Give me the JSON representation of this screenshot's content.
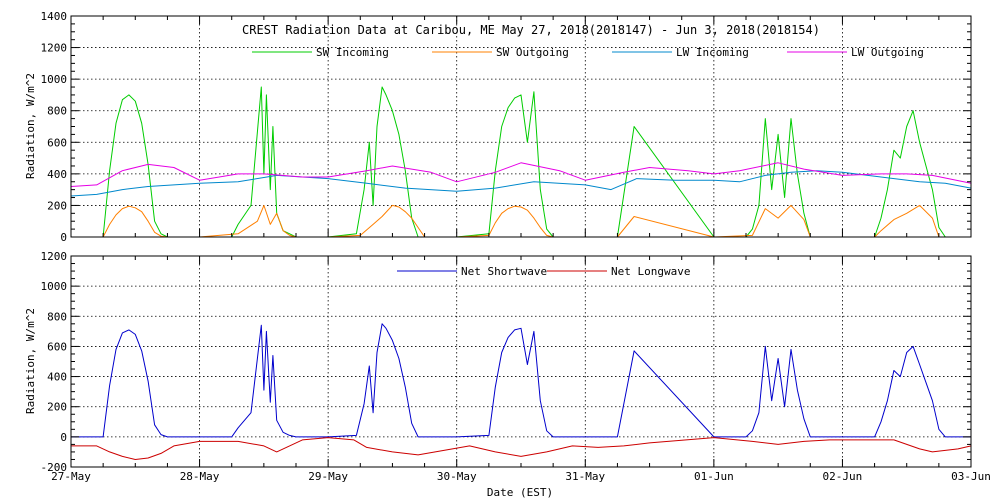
{
  "chart_data": [
    {
      "type": "line",
      "title": "CREST Radiation Data at Caribou, ME   May 27, 2018(2018147) - Jun  3, 2018(2018154)",
      "xlabel": "",
      "ylabel": "Radiation, W/m^2",
      "xlim": [
        0,
        7
      ],
      "ylim": [
        0,
        1400
      ],
      "yticks": [
        0,
        200,
        400,
        600,
        800,
        1000,
        1200,
        1400
      ],
      "xtick_labels": [
        "27-May",
        "28-May",
        "29-May",
        "30-May",
        "31-May",
        "01-Jun",
        "02-Jun",
        "03-Jun"
      ],
      "grid": true,
      "legend": "top",
      "series": [
        {
          "name": "SW Incoming",
          "color": "#00cc00",
          "x": [
            0.0,
            0.25,
            0.3,
            0.35,
            0.4,
            0.45,
            0.5,
            0.55,
            0.6,
            0.65,
            0.7,
            0.75,
            0.8,
            1.0,
            1.25,
            1.3,
            1.4,
            1.48,
            1.5,
            1.52,
            1.55,
            1.57,
            1.6,
            1.65,
            1.7,
            1.75,
            1.8,
            2.0,
            2.22,
            2.28,
            2.32,
            2.35,
            2.38,
            2.42,
            2.45,
            2.5,
            2.55,
            2.6,
            2.65,
            2.7,
            2.75,
            2.8,
            3.0,
            3.25,
            3.3,
            3.35,
            3.4,
            3.45,
            3.5,
            3.55,
            3.6,
            3.65,
            3.7,
            3.75,
            3.8,
            4.0,
            4.25,
            4.38,
            5.0,
            5.25,
            5.3,
            5.35,
            5.4,
            5.45,
            5.5,
            5.55,
            5.6,
            5.65,
            5.7,
            5.75,
            5.8,
            6.0,
            6.25,
            6.3,
            6.35,
            6.4,
            6.45,
            6.5,
            6.55,
            6.6,
            6.65,
            6.7,
            6.75,
            6.8,
            7.0
          ],
          "y": [
            0,
            0,
            420,
            720,
            870,
            900,
            860,
            720,
            460,
            100,
            20,
            0,
            0,
            0,
            0,
            80,
            200,
            950,
            400,
            900,
            300,
            700,
            150,
            40,
            20,
            0,
            0,
            0,
            20,
            300,
            600,
            200,
            700,
            950,
            900,
            800,
            650,
            420,
            120,
            0,
            0,
            0,
            0,
            20,
            420,
            700,
            820,
            880,
            900,
            600,
            920,
            300,
            50,
            0,
            0,
            0,
            0,
            700,
            0,
            0,
            50,
            200,
            750,
            300,
            650,
            250,
            750,
            400,
            150,
            0,
            0,
            0,
            0,
            120,
            300,
            550,
            500,
            700,
            800,
            600,
            450,
            300,
            60,
            0,
            0
          ]
        },
        {
          "name": "SW Outgoing",
          "color": "#ff8000",
          "x": [
            0.0,
            0.25,
            0.3,
            0.35,
            0.4,
            0.45,
            0.5,
            0.55,
            0.6,
            0.65,
            0.7,
            0.75,
            1.0,
            1.3,
            1.45,
            1.5,
            1.55,
            1.6,
            1.65,
            1.7,
            1.75,
            2.0,
            2.25,
            2.35,
            2.42,
            2.5,
            2.55,
            2.6,
            2.65,
            2.7,
            2.75,
            3.0,
            3.25,
            3.3,
            3.35,
            3.4,
            3.45,
            3.5,
            3.55,
            3.6,
            3.65,
            3.7,
            3.75,
            4.0,
            4.25,
            4.38,
            5.0,
            5.3,
            5.4,
            5.5,
            5.6,
            5.7,
            5.75,
            6.0,
            6.25,
            6.3,
            6.4,
            6.5,
            6.6,
            6.7,
            6.75,
            7.0
          ],
          "y": [
            0,
            0,
            80,
            140,
            180,
            195,
            185,
            160,
            100,
            30,
            5,
            0,
            0,
            20,
            100,
            200,
            80,
            150,
            40,
            10,
            0,
            0,
            10,
            80,
            130,
            200,
            190,
            160,
            120,
            60,
            0,
            0,
            10,
            90,
            150,
            180,
            195,
            190,
            170,
            120,
            60,
            10,
            0,
            0,
            0,
            130,
            0,
            10,
            180,
            120,
            200,
            110,
            0,
            0,
            0,
            40,
            110,
            150,
            200,
            120,
            0,
            0
          ]
        },
        {
          "name": "LW Incoming",
          "color": "#0088cc",
          "x": [
            0.0,
            0.2,
            0.4,
            0.6,
            0.8,
            1.0,
            1.3,
            1.6,
            2.0,
            2.3,
            2.6,
            3.0,
            3.3,
            3.6,
            4.0,
            4.2,
            4.4,
            4.7,
            5.0,
            5.2,
            5.4,
            5.6,
            5.8,
            6.0,
            6.3,
            6.6,
            6.8,
            7.0
          ],
          "y": [
            260,
            270,
            300,
            320,
            330,
            340,
            350,
            390,
            370,
            340,
            310,
            290,
            310,
            350,
            330,
            300,
            370,
            360,
            360,
            350,
            390,
            410,
            420,
            410,
            380,
            350,
            340,
            310
          ]
        },
        {
          "name": "LW Outgoing",
          "color": "#e600e6",
          "x": [
            0.0,
            0.2,
            0.4,
            0.6,
            0.8,
            1.0,
            1.3,
            1.5,
            1.8,
            2.0,
            2.3,
            2.5,
            2.8,
            3.0,
            3.3,
            3.5,
            3.8,
            4.0,
            4.3,
            4.5,
            4.8,
            5.0,
            5.2,
            5.5,
            5.7,
            6.0,
            6.3,
            6.5,
            6.7,
            7.0
          ],
          "y": [
            320,
            330,
            420,
            460,
            440,
            360,
            400,
            400,
            380,
            380,
            420,
            450,
            410,
            350,
            410,
            470,
            420,
            360,
            410,
            440,
            420,
            400,
            420,
            470,
            430,
            390,
            400,
            400,
            390,
            340
          ]
        }
      ]
    },
    {
      "type": "line",
      "title": "",
      "xlabel": "Date (EST)",
      "ylabel": "Radiation, W/m^2",
      "xlim": [
        0,
        7
      ],
      "ylim": [
        -200,
        1200
      ],
      "yticks": [
        -200,
        0,
        200,
        400,
        600,
        800,
        1000,
        1200
      ],
      "xtick_labels": [
        "27-May",
        "28-May",
        "29-May",
        "30-May",
        "31-May",
        "01-Jun",
        "02-Jun",
        "03-Jun"
      ],
      "grid": true,
      "legend": "top",
      "series": [
        {
          "name": "Net Shortwave",
          "color": "#0000cc",
          "x": [
            0.0,
            0.25,
            0.3,
            0.35,
            0.4,
            0.45,
            0.5,
            0.55,
            0.6,
            0.65,
            0.7,
            0.75,
            0.8,
            1.0,
            1.25,
            1.3,
            1.4,
            1.48,
            1.5,
            1.52,
            1.55,
            1.57,
            1.6,
            1.65,
            1.7,
            1.75,
            1.8,
            2.0,
            2.22,
            2.28,
            2.32,
            2.35,
            2.38,
            2.42,
            2.45,
            2.5,
            2.55,
            2.6,
            2.65,
            2.7,
            2.75,
            2.8,
            3.0,
            3.25,
            3.3,
            3.35,
            3.4,
            3.45,
            3.5,
            3.55,
            3.6,
            3.65,
            3.7,
            3.75,
            3.8,
            4.0,
            4.25,
            4.38,
            5.0,
            5.25,
            5.3,
            5.35,
            5.4,
            5.45,
            5.5,
            5.55,
            5.6,
            5.65,
            5.7,
            5.75,
            5.8,
            6.0,
            6.25,
            6.3,
            6.35,
            6.4,
            6.45,
            6.5,
            6.55,
            6.6,
            6.65,
            6.7,
            6.75,
            6.8,
            7.0
          ],
          "y": [
            0,
            0,
            340,
            580,
            690,
            710,
            680,
            570,
            370,
            80,
            15,
            0,
            0,
            0,
            0,
            60,
            160,
            740,
            310,
            700,
            230,
            540,
            110,
            30,
            10,
            0,
            0,
            0,
            10,
            220,
            470,
            160,
            560,
            750,
            720,
            640,
            520,
            330,
            90,
            0,
            0,
            0,
            0,
            10,
            330,
            560,
            660,
            710,
            720,
            480,
            700,
            240,
            40,
            0,
            0,
            0,
            0,
            570,
            0,
            0,
            40,
            160,
            600,
            240,
            520,
            200,
            580,
            310,
            120,
            0,
            0,
            0,
            0,
            100,
            240,
            440,
            400,
            560,
            600,
            480,
            360,
            240,
            50,
            0,
            0
          ]
        },
        {
          "name": "Net Longwave",
          "color": "#cc0000",
          "x": [
            0.0,
            0.2,
            0.3,
            0.4,
            0.5,
            0.6,
            0.7,
            0.8,
            1.0,
            1.3,
            1.5,
            1.6,
            1.8,
            2.0,
            2.2,
            2.3,
            2.5,
            2.7,
            2.9,
            3.1,
            3.3,
            3.5,
            3.7,
            3.9,
            4.1,
            4.3,
            4.5,
            5.0,
            5.3,
            5.5,
            5.7,
            5.9,
            6.2,
            6.4,
            6.6,
            6.7,
            6.9,
            7.0
          ],
          "y": [
            -60,
            -60,
            -100,
            -130,
            -150,
            -140,
            -110,
            -60,
            -30,
            -30,
            -60,
            -100,
            -20,
            -5,
            -20,
            -70,
            -100,
            -120,
            -90,
            -60,
            -100,
            -130,
            -100,
            -60,
            -70,
            -60,
            -40,
            -5,
            -30,
            -50,
            -30,
            -20,
            -20,
            -20,
            -80,
            -100,
            -80,
            -60
          ]
        }
      ]
    }
  ]
}
